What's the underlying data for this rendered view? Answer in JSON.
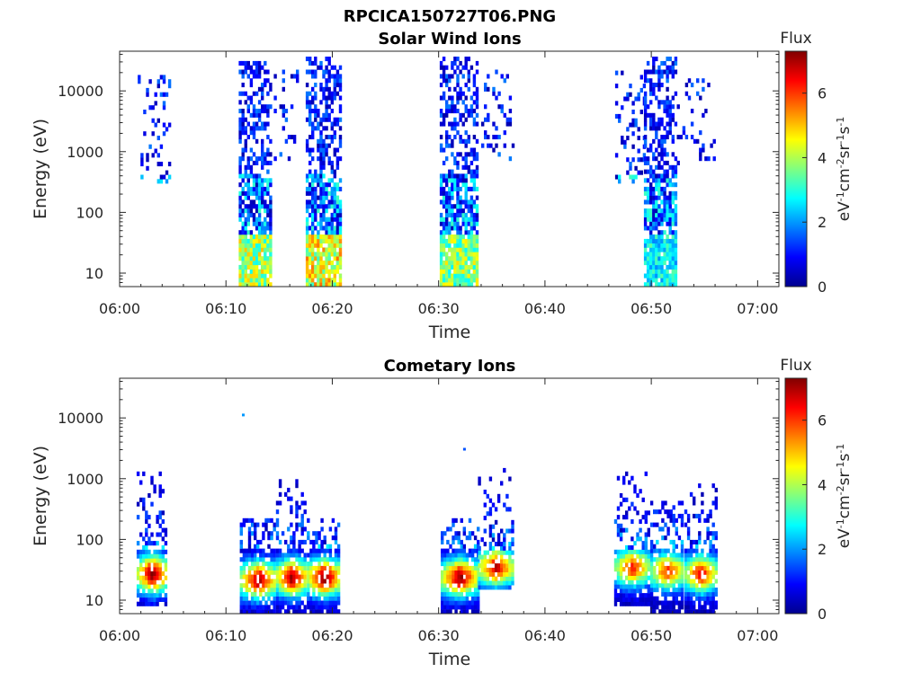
{
  "figure": {
    "title": "RPCICA150727T06.PNG",
    "colorbar_title": "Flux",
    "colorbar_units": "eV-1cm-2sr-1s-1",
    "colorbar_ticks": [
      "0",
      "2",
      "4",
      "6"
    ],
    "colorbar_range": [
      0,
      7.3
    ],
    "colormap": [
      "#00008f",
      "#0000ff",
      "#0080ff",
      "#00ffff",
      "#80ff80",
      "#ffff00",
      "#ff8000",
      "#ff0000",
      "#800000"
    ]
  },
  "chart_data": [
    {
      "type": "heatmap",
      "title": "Solar Wind Ions",
      "xlabel": "Time",
      "ylabel": "Energy (eV)",
      "x_ticks": [
        "06:00",
        "06:10",
        "06:20",
        "06:30",
        "06:40",
        "06:50",
        "07:00"
      ],
      "y_ticks": [
        "10",
        "100",
        "1000",
        "10000"
      ],
      "y_scale": "log",
      "xlim_minutes": [
        0,
        62
      ],
      "ylim_eV": [
        6,
        45000
      ],
      "clusters": [
        {
          "t_start": 1.7,
          "t_end": 4.6,
          "e_min": 300,
          "e_max": 16000,
          "flux_peak": 2.6,
          "density": 0.16
        },
        {
          "t_start": 11.2,
          "t_end": 14.2,
          "e_min": 6,
          "e_max": 30000,
          "flux_peak": 5.0,
          "density": 0.45
        },
        {
          "t_start": 14.5,
          "t_end": 16.6,
          "e_min": 600,
          "e_max": 20000,
          "flux_peak": 2.4,
          "density": 0.15
        },
        {
          "t_start": 17.5,
          "t_end": 20.7,
          "e_min": 6,
          "e_max": 35000,
          "flux_peak": 5.6,
          "density": 0.5
        },
        {
          "t_start": 30.1,
          "t_end": 33.7,
          "e_min": 6,
          "e_max": 35000,
          "flux_peak": 4.8,
          "density": 0.45
        },
        {
          "t_start": 34.0,
          "t_end": 36.9,
          "e_min": 600,
          "e_max": 20000,
          "flux_peak": 2.4,
          "density": 0.16
        },
        {
          "t_start": 46.6,
          "t_end": 49.2,
          "e_min": 300,
          "e_max": 20000,
          "flux_peak": 2.4,
          "density": 0.22
        },
        {
          "t_start": 49.3,
          "t_end": 52.3,
          "e_min": 6,
          "e_max": 35000,
          "flux_peak": 3.4,
          "density": 0.45
        },
        {
          "t_start": 52.4,
          "t_end": 56.0,
          "e_min": 600,
          "e_max": 15000,
          "flux_peak": 2.4,
          "density": 0.16
        }
      ],
      "isolated_points": []
    },
    {
      "type": "heatmap",
      "title": "Cometary Ions",
      "xlabel": "Time",
      "ylabel": "Energy (eV)",
      "x_ticks": [
        "06:00",
        "06:10",
        "06:20",
        "06:30",
        "06:40",
        "06:50",
        "07:00"
      ],
      "y_ticks": [
        "10",
        "100",
        "1000",
        "10000"
      ],
      "y_scale": "log",
      "xlim_minutes": [
        0,
        62
      ],
      "ylim_eV": [
        6,
        45000
      ],
      "clusters": [
        {
          "t_start": 1.6,
          "t_end": 4.4,
          "e_min": 8,
          "e_max": 1200,
          "flux_peak": 7.2,
          "core_e": 25,
          "density": 0.45
        },
        {
          "t_start": 11.3,
          "t_end": 14.6,
          "e_min": 6,
          "e_max": 200,
          "flux_peak": 6.8,
          "core_e": 20,
          "density": 0.5
        },
        {
          "t_start": 14.7,
          "t_end": 17.5,
          "e_min": 6,
          "e_max": 900,
          "flux_peak": 7.0,
          "core_e": 22,
          "density": 0.5
        },
        {
          "t_start": 17.6,
          "t_end": 20.7,
          "e_min": 6,
          "e_max": 200,
          "flux_peak": 7.2,
          "core_e": 22,
          "density": 0.5
        },
        {
          "t_start": 30.2,
          "t_end": 33.6,
          "e_min": 6,
          "e_max": 200,
          "flux_peak": 7.0,
          "core_e": 22,
          "density": 0.5
        },
        {
          "t_start": 33.7,
          "t_end": 36.9,
          "e_min": 15,
          "e_max": 1300,
          "flux_peak": 6.6,
          "core_e": 32,
          "density": 0.4
        },
        {
          "t_start": 46.5,
          "t_end": 49.8,
          "e_min": 8,
          "e_max": 1300,
          "flux_peak": 6.0,
          "core_e": 32,
          "density": 0.45
        },
        {
          "t_start": 49.9,
          "t_end": 53.0,
          "e_min": 6,
          "e_max": 500,
          "flux_peak": 6.0,
          "core_e": 28,
          "density": 0.45
        },
        {
          "t_start": 53.1,
          "t_end": 56.0,
          "e_min": 6,
          "e_max": 1000,
          "flux_peak": 6.4,
          "core_e": 25,
          "density": 0.45
        }
      ],
      "isolated_points": [
        {
          "t_min": 11.5,
          "e": 11000,
          "flux": 2.0
        },
        {
          "t_min": 32.3,
          "e": 3000,
          "flux": 1.5
        }
      ]
    }
  ]
}
